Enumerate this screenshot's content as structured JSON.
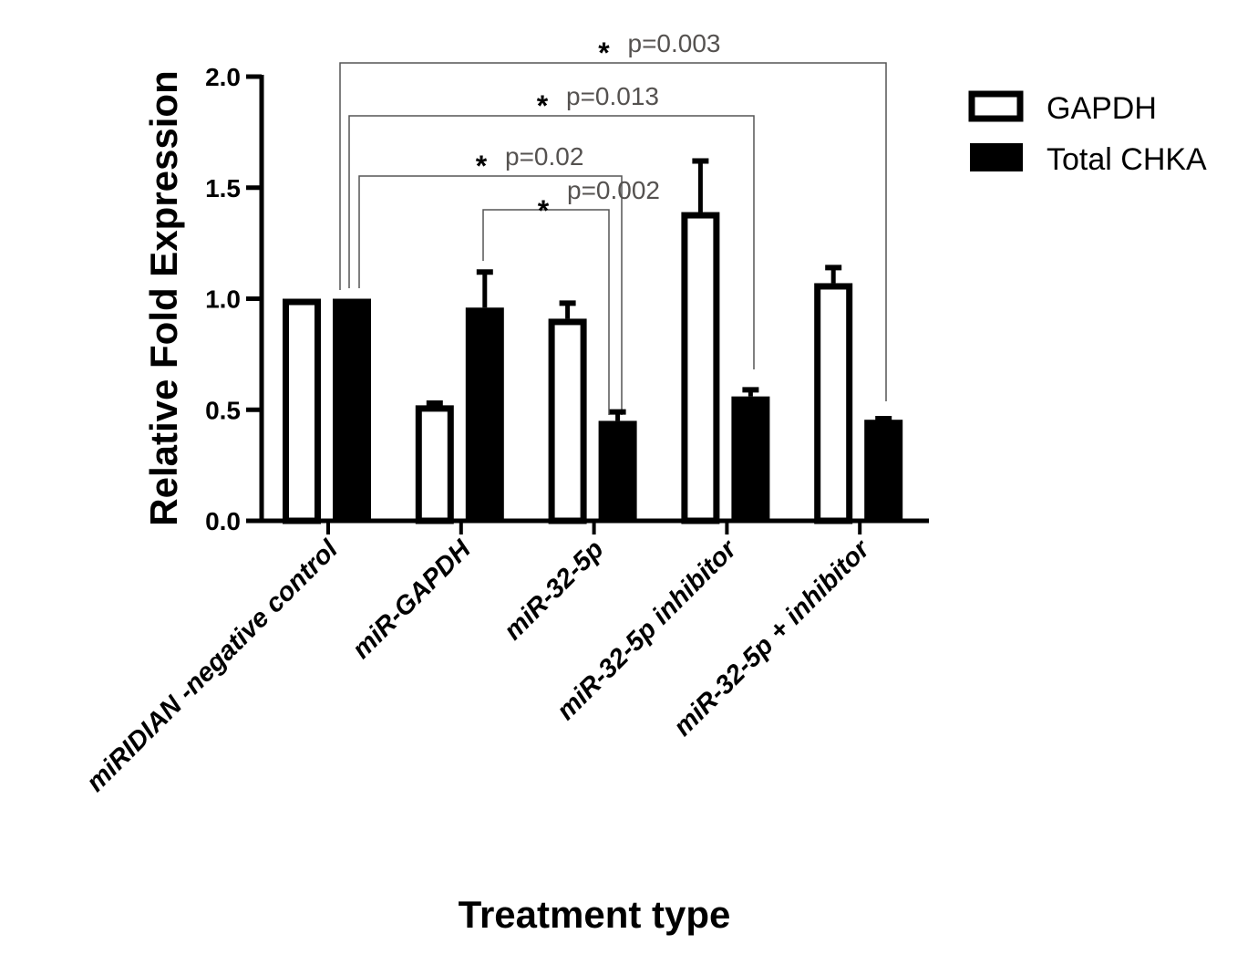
{
  "chart_data": {
    "type": "bar",
    "title": "",
    "xlabel": "Treatment type",
    "ylabel": "Relative Fold Expression",
    "ylim": [
      0,
      2.0
    ],
    "yticks": [
      "0.0",
      "0.5",
      "1.0",
      "1.5",
      "2.0"
    ],
    "ytick_values": [
      0,
      0.5,
      1.0,
      1.5,
      2.0
    ],
    "categories": [
      "miRIDIAN -negative control",
      "miR-GAPDH",
      "miR-32-5p",
      "miR-32-5p inhibitor",
      "miR-32-5p + inhibitor"
    ],
    "series": [
      {
        "name": "GAPDH",
        "style": "hollow",
        "color": "#000000",
        "values": [
          1.0,
          0.52,
          0.91,
          1.39,
          1.07
        ],
        "error": [
          0.0,
          0.01,
          0.07,
          0.23,
          0.07
        ]
      },
      {
        "name": "Total CHKA",
        "style": "filled",
        "color": "#000000",
        "values": [
          1.0,
          0.96,
          0.45,
          0.56,
          0.455
        ],
        "error": [
          0.0,
          0.16,
          0.04,
          0.03,
          0.005
        ]
      }
    ],
    "legend": {
      "position": "top-right",
      "entries": [
        "GAPDH",
        "Total CHKA"
      ]
    },
    "grid": false,
    "annotations": [
      {
        "from": [
          0,
          "Total CHKA"
        ],
        "to": [
          4,
          "Total CHKA"
        ],
        "star": "*",
        "text": "p=0.003",
        "level": 4
      },
      {
        "from": [
          0,
          "Total CHKA"
        ],
        "to": [
          3,
          "Total CHKA"
        ],
        "star": "*",
        "text": "p=0.013",
        "level": 3
      },
      {
        "from": [
          0,
          "Total CHKA"
        ],
        "to": [
          2,
          "Total CHKA"
        ],
        "star": "*",
        "text": "p=0.02",
        "level": 2
      },
      {
        "from": [
          1,
          "Total CHKA"
        ],
        "to": [
          2,
          "Total CHKA"
        ],
        "star": "*",
        "text": "p=0.002",
        "level": 1
      }
    ]
  }
}
